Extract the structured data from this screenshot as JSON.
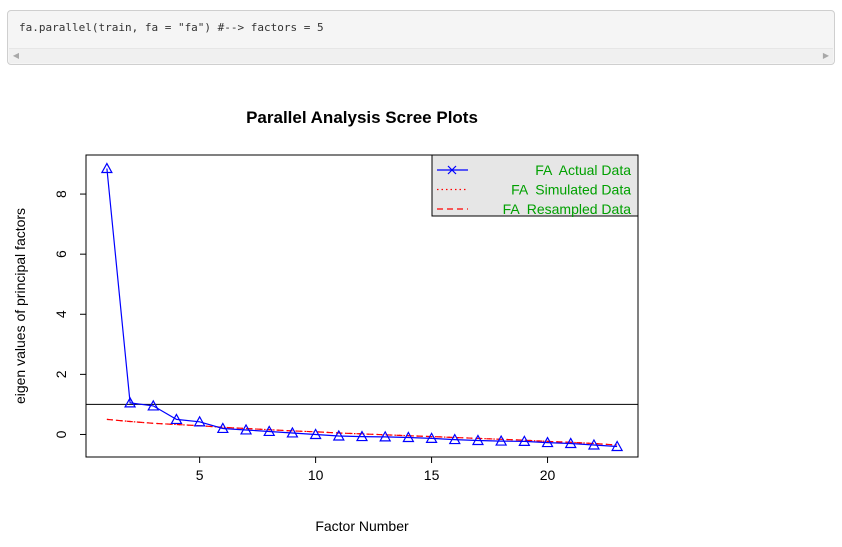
{
  "code": {
    "text": "fa.parallel(train, fa = \"fa\") #--> factors = 5",
    "scroll_left_icon": "triangle-left-icon",
    "scroll_right_icon": "triangle-right-icon"
  },
  "chart_data": {
    "type": "line",
    "title": "Parallel Analysis Scree Plots",
    "xlabel": "Factor Number",
    "ylabel": "eigen values of principal factors",
    "xlim": [
      0.1,
      23.9
    ],
    "ylim": [
      -0.75,
      9.3
    ],
    "xticks": [
      5,
      10,
      15,
      20
    ],
    "yticks": [
      0,
      2,
      4,
      6,
      8
    ],
    "hline": 1,
    "legend_position": "top-right",
    "x": [
      1,
      2,
      3,
      4,
      5,
      6,
      7,
      8,
      9,
      10,
      11,
      12,
      13,
      14,
      15,
      16,
      17,
      18,
      19,
      20,
      21,
      22,
      23
    ],
    "series": [
      {
        "name": "FA  Actual Data",
        "color": "#0000ff",
        "line": "solid",
        "marker": "triangle",
        "values": [
          8.85,
          1.05,
          0.95,
          0.5,
          0.42,
          0.2,
          0.15,
          0.1,
          0.05,
          0.0,
          -0.05,
          -0.07,
          -0.08,
          -0.1,
          -0.13,
          -0.17,
          -0.2,
          -0.22,
          -0.23,
          -0.27,
          -0.3,
          -0.35,
          -0.4
        ]
      },
      {
        "name": "FA  Simulated Data",
        "color": "#ff0000",
        "line": "dotted",
        "values": [
          0.5,
          0.43,
          0.37,
          0.33,
          0.29,
          0.24,
          0.2,
          0.16,
          0.12,
          0.09,
          0.05,
          0.02,
          -0.01,
          -0.04,
          -0.07,
          -0.1,
          -0.13,
          -0.16,
          -0.19,
          -0.23,
          -0.26,
          -0.3,
          -0.35
        ]
      },
      {
        "name": "FA  Resampled Data",
        "color": "#ff0000",
        "line": "dashed",
        "values": [
          0.5,
          0.43,
          0.37,
          0.33,
          0.29,
          0.24,
          0.2,
          0.16,
          0.12,
          0.09,
          0.05,
          0.02,
          -0.01,
          -0.04,
          -0.07,
          -0.1,
          -0.13,
          -0.16,
          -0.19,
          -0.23,
          -0.26,
          -0.3,
          -0.35
        ]
      }
    ],
    "legend_text_color": "#00a000",
    "legend_bg": "#e6e6e6"
  }
}
